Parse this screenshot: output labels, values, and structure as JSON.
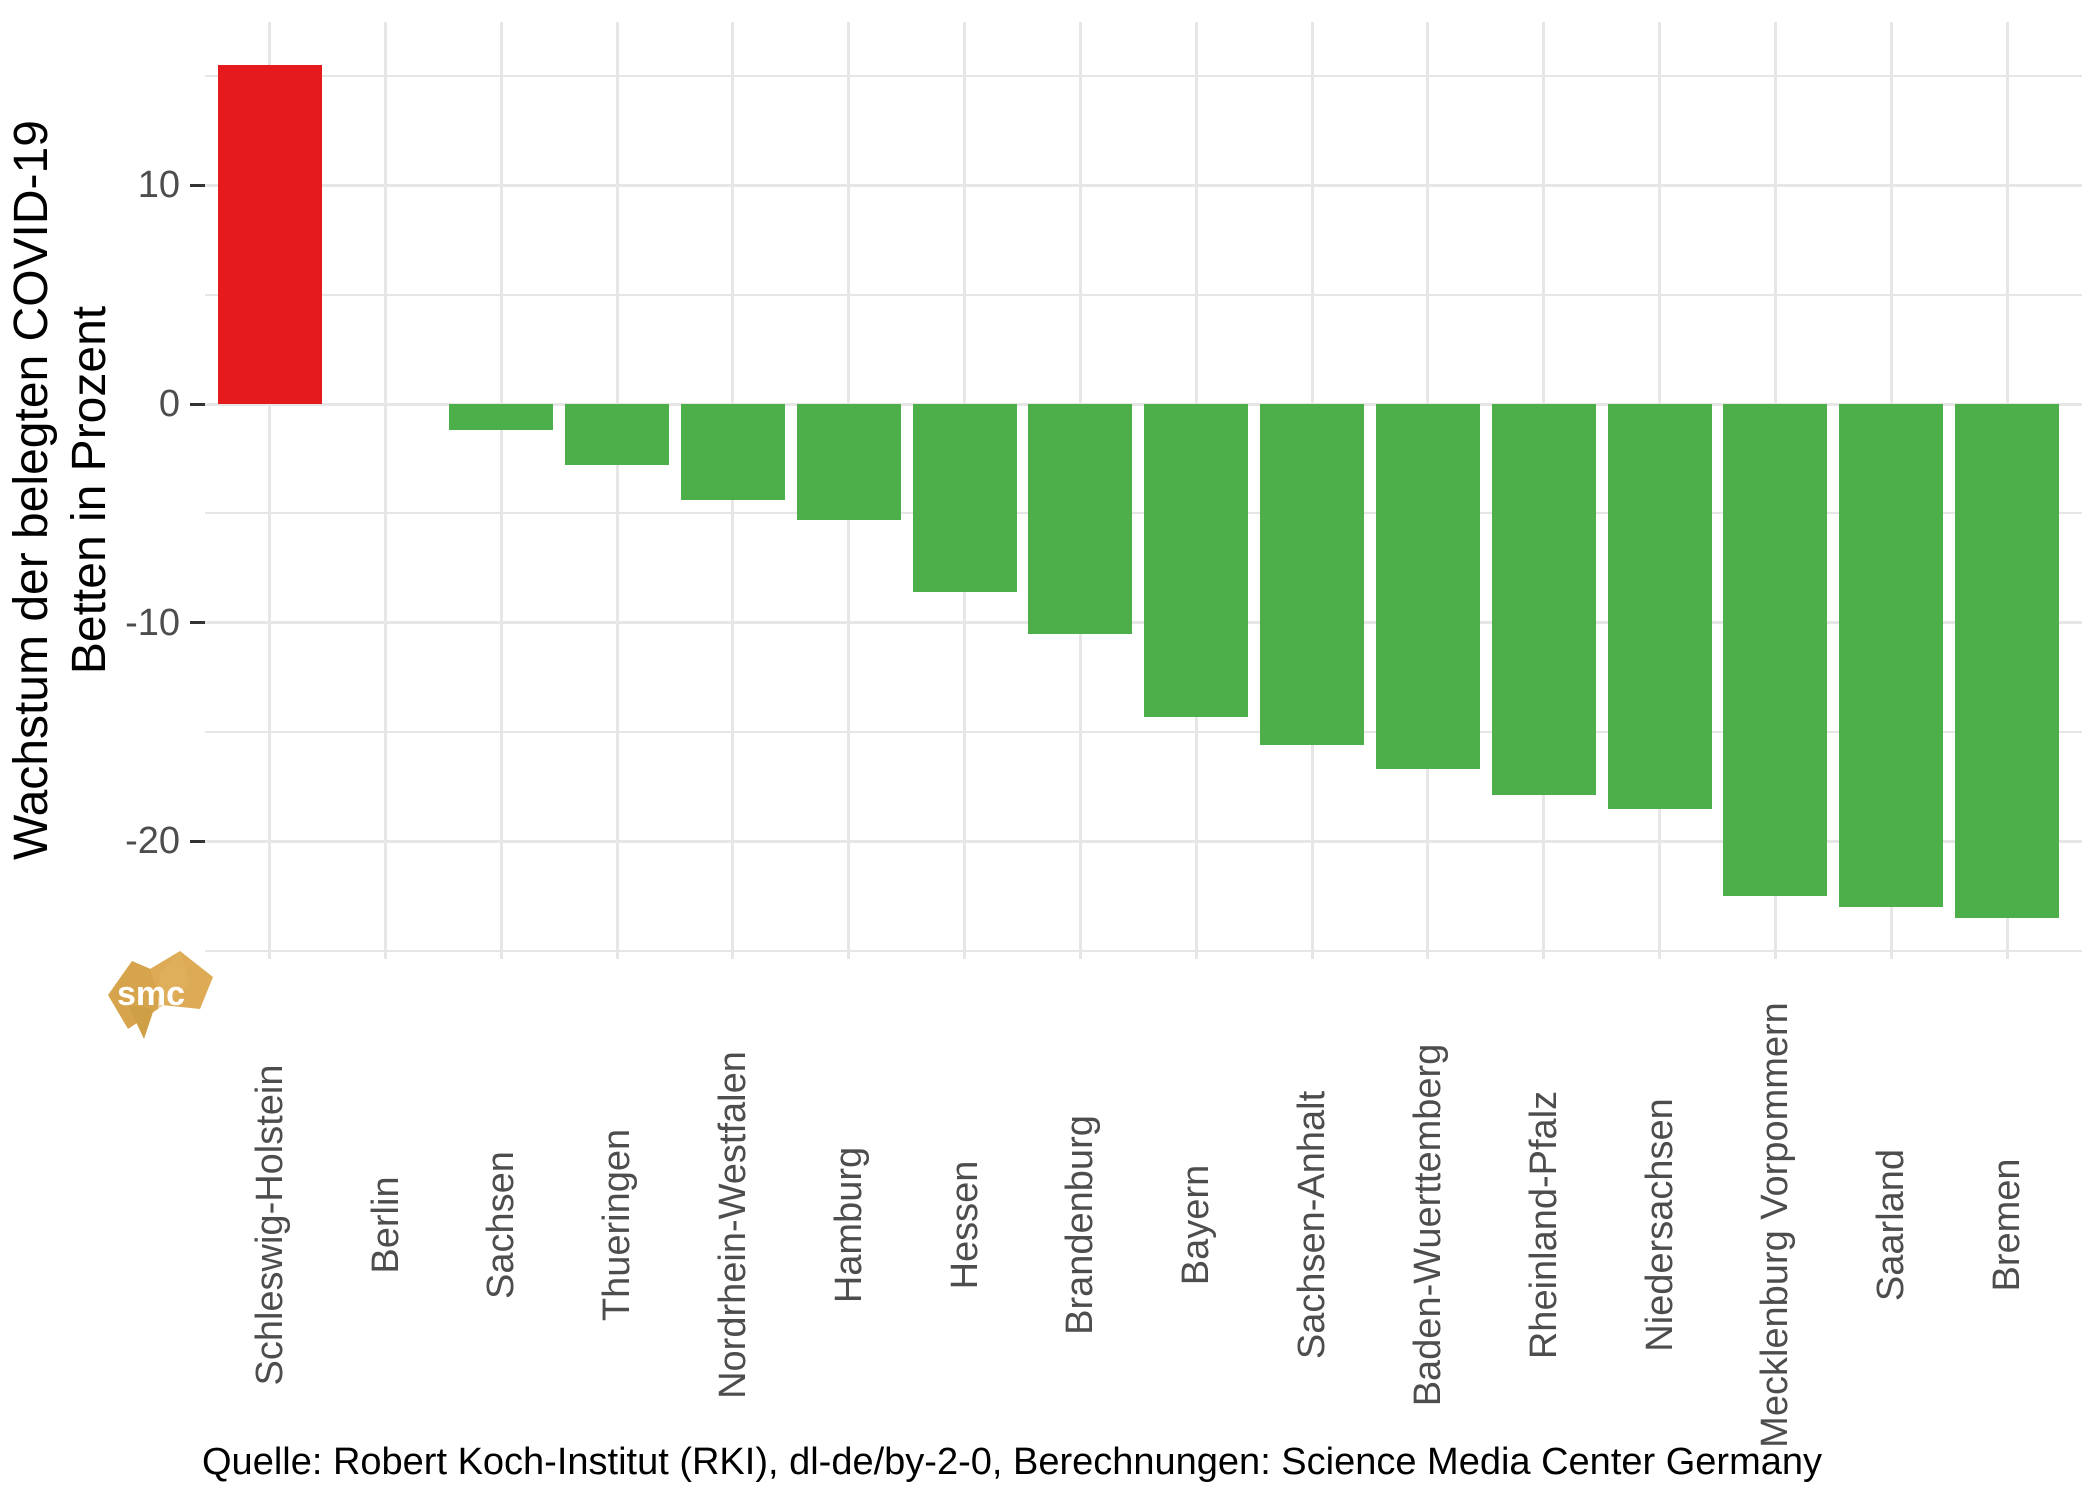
{
  "chart_data": {
    "type": "bar",
    "title": "",
    "ylabel_lines": [
      "Wachstum der belegten COVID-19",
      "Betten in Prozent"
    ],
    "xlabel": "",
    "caption": "Quelle: Robert Koch-Institut (RKI), dl-de/by-2-0, Berechnungen: Science Media Center Germany",
    "categories": [
      "Schleswig-Holstein",
      "Berlin",
      "Sachsen",
      "Thueringen",
      "Nordrhein-Westfalen",
      "Hamburg",
      "Hessen",
      "Brandenburg",
      "Bayern",
      "Sachsen-Anhalt",
      "Baden-Wuerttemberg",
      "Rheinland-Pfalz",
      "Niedersachsen",
      "Mecklenburg Vorpommern",
      "Saarland",
      "Bremen"
    ],
    "values": [
      15.5,
      0,
      -1.2,
      -2.8,
      -4.4,
      -5.3,
      -8.6,
      -10.5,
      -14.3,
      -15.6,
      -16.7,
      -17.9,
      -18.5,
      -22.5,
      -23.0,
      -23.5
    ],
    "unit": "Prozent",
    "y_major_ticks": [
      10,
      0,
      -10,
      -20
    ],
    "y_minor_ticks": [
      15,
      5,
      -5,
      -15,
      -25
    ],
    "ylim": [
      -25.4,
      17.5
    ],
    "grid": "on",
    "legend": "none",
    "colors": {
      "positive_bar": "#e41a1c",
      "negative_bar": "#4daf4a",
      "gridline": "#e6e6e6",
      "axis_text": "#4d4d4d",
      "tick_mark": "#333333",
      "title_text": "#000000",
      "logo_gold": "#d9a851"
    },
    "logo_text": "smc"
  }
}
